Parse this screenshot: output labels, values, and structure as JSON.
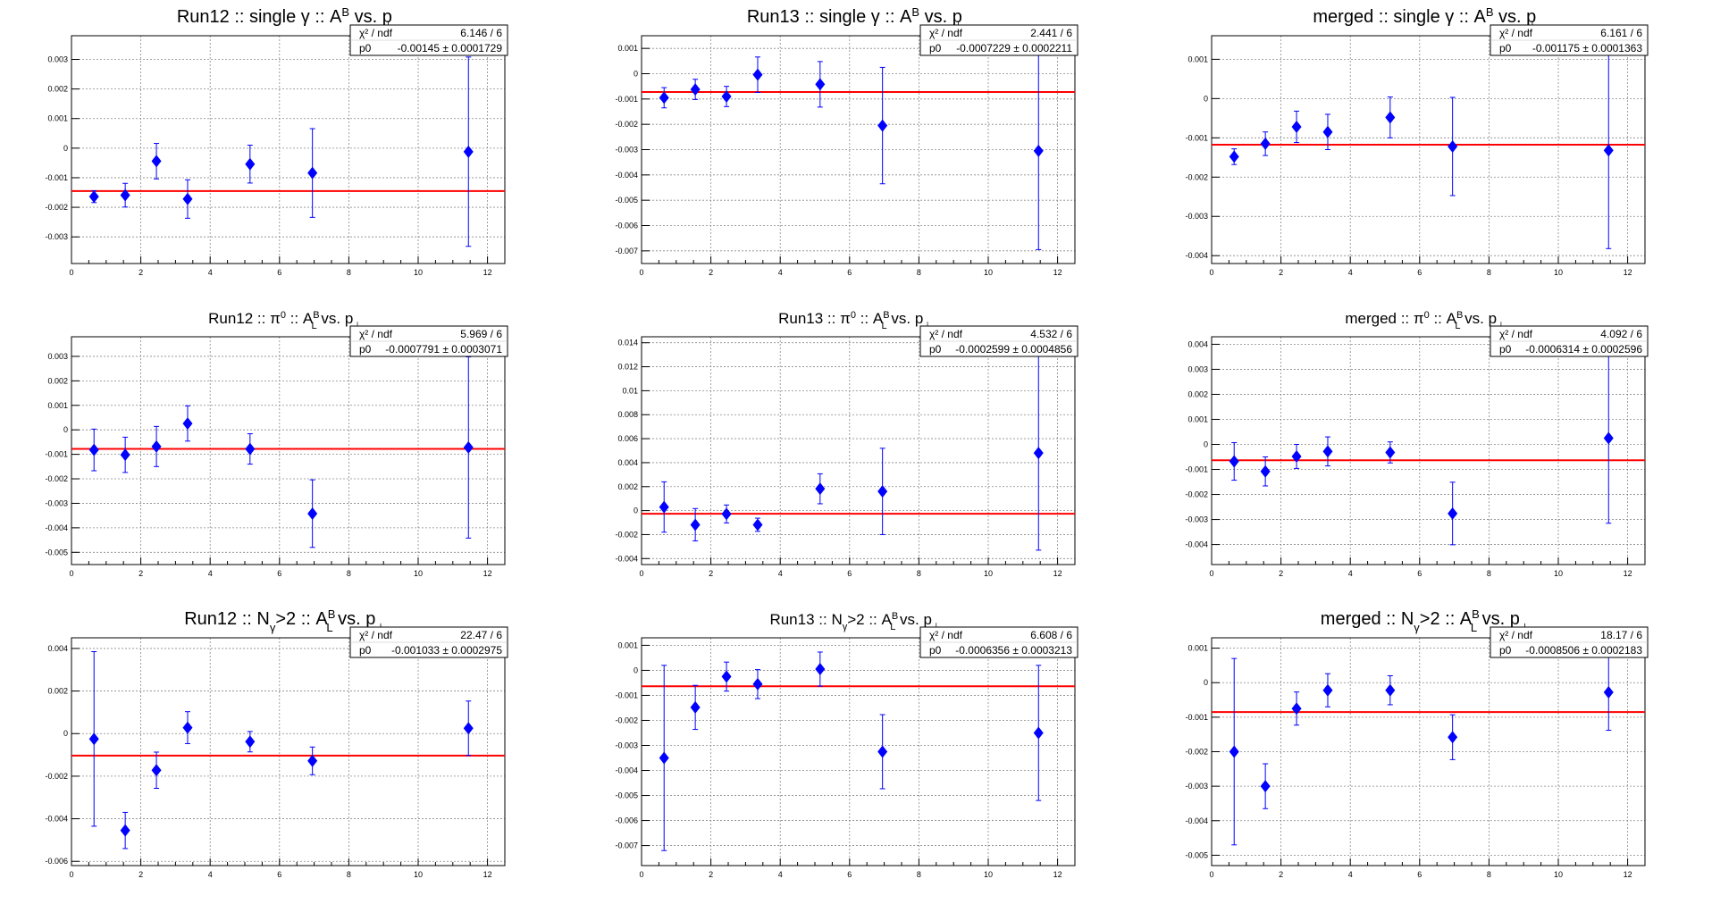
{
  "chart_data": [
    {
      "type": "scatter",
      "title": "Run12 :: single γ :: A",
      "title_sup": "B",
      "title_sub": "",
      "title_tail": " vs. p",
      "title_tail_sub": "⊥",
      "title_size": 20,
      "stats": {
        "chi2_label": "χ² / ndf",
        "chi2_value": "6.146 / 6",
        "p0_label": "p0",
        "p0_value": "-0.00145 ± 0.0001729"
      },
      "xlim": [
        0,
        12.5
      ],
      "ylim": [
        -0.0039,
        0.0038
      ],
      "xticks": [
        0,
        2,
        4,
        6,
        8,
        10,
        12
      ],
      "yticks": [
        -0.003,
        -0.002,
        -0.001,
        0,
        0.001,
        0.002,
        0.003
      ],
      "yticklabels": [
        "-0.003",
        "-0.002",
        "-0.001",
        "0",
        "0.001",
        "0.002",
        "0.003"
      ],
      "fit": -0.00145,
      "points": [
        {
          "x": 0.65,
          "y": -0.00164,
          "err": 0.0002
        },
        {
          "x": 1.55,
          "y": -0.00159,
          "err": 0.0004
        },
        {
          "x": 2.45,
          "y": -0.00044,
          "err": 0.0006
        },
        {
          "x": 3.35,
          "y": -0.00172,
          "err": 0.00065
        },
        {
          "x": 5.15,
          "y": -0.00054,
          "err": 0.00064
        },
        {
          "x": 6.95,
          "y": -0.00084,
          "err": 0.0015
        },
        {
          "x": 11.45,
          "y": -0.00012,
          "err": 0.0032
        }
      ]
    },
    {
      "type": "scatter",
      "title": "Run13 :: single γ :: A",
      "title_sup": "B",
      "title_sub": "",
      "title_tail": " vs. p",
      "title_tail_sub": "⊥",
      "title_size": 20,
      "stats": {
        "chi2_label": "χ² / ndf",
        "chi2_value": "2.441 / 6",
        "p0_label": "p0",
        "p0_value": "-0.0007229 ± 0.0002211"
      },
      "xlim": [
        0,
        12.5
      ],
      "ylim": [
        -0.0075,
        0.0015
      ],
      "xticks": [
        0,
        2,
        4,
        6,
        8,
        10,
        12
      ],
      "yticks": [
        -0.007,
        -0.006,
        -0.005,
        -0.004,
        -0.003,
        -0.002,
        -0.001,
        0,
        0.001
      ],
      "yticklabels": [
        "-0.007",
        "-0.006",
        "-0.005",
        "-0.004",
        "-0.003",
        "-0.002",
        "-0.001",
        "0",
        "0.001"
      ],
      "fit": -0.0007229,
      "points": [
        {
          "x": 0.65,
          "y": -0.00095,
          "err": 0.0004
        },
        {
          "x": 1.55,
          "y": -0.00062,
          "err": 0.0004
        },
        {
          "x": 2.45,
          "y": -0.0009,
          "err": 0.0004
        },
        {
          "x": 3.35,
          "y": -4e-05,
          "err": 0.0007
        },
        {
          "x": 5.15,
          "y": -0.00042,
          "err": 0.0009
        },
        {
          "x": 6.95,
          "y": -0.00205,
          "err": 0.0023
        },
        {
          "x": 11.45,
          "y": -0.00305,
          "err": 0.0039
        }
      ]
    },
    {
      "type": "scatter",
      "title": "merged :: single γ :: A",
      "title_sup": "B",
      "title_sub": "",
      "title_tail": " vs. p",
      "title_tail_sub": "⊥",
      "title_size": 20,
      "stats": {
        "chi2_label": "χ² / ndf",
        "chi2_value": "6.161 / 6",
        "p0_label": "p0",
        "p0_value": "-0.001175 ± 0.0001363"
      },
      "xlim": [
        0,
        12.5
      ],
      "ylim": [
        -0.0042,
        0.0016
      ],
      "xticks": [
        0,
        2,
        4,
        6,
        8,
        10,
        12
      ],
      "yticks": [
        -0.004,
        -0.003,
        -0.002,
        -0.001,
        0,
        0.001
      ],
      "yticklabels": [
        "-0.004",
        "-0.003",
        "-0.002",
        "-0.001",
        "0",
        "0.001"
      ],
      "fit": -0.001175,
      "points": [
        {
          "x": 0.65,
          "y": -0.00148,
          "err": 0.0002
        },
        {
          "x": 1.55,
          "y": -0.00115,
          "err": 0.0003
        },
        {
          "x": 2.45,
          "y": -0.00072,
          "err": 0.0004
        },
        {
          "x": 3.35,
          "y": -0.00085,
          "err": 0.00045
        },
        {
          "x": 5.15,
          "y": -0.00048,
          "err": 0.00052
        },
        {
          "x": 6.95,
          "y": -0.00122,
          "err": 0.00125
        },
        {
          "x": 11.45,
          "y": -0.00132,
          "err": 0.0025
        }
      ]
    },
    {
      "type": "scatter",
      "title": "Run12 :: π",
      "title_sup": "0",
      "title_sub": "",
      "title_tail": " :: A",
      "title_tail_sup": "B",
      "title_tail_sub": "L",
      "title_tail2": " vs. p",
      "title_tail2_sub": "⊥",
      "title_size": 17,
      "stats": {
        "chi2_label": "χ² / ndf",
        "chi2_value": "5.969 / 6",
        "p0_label": "p0",
        "p0_value": "-0.0007791 ± 0.0003071"
      },
      "xlim": [
        0,
        12.5
      ],
      "ylim": [
        -0.0055,
        0.0038
      ],
      "xticks": [
        0,
        2,
        4,
        6,
        8,
        10,
        12
      ],
      "yticks": [
        -0.005,
        -0.004,
        -0.003,
        -0.002,
        -0.001,
        0,
        0.001,
        0.002,
        0.003
      ],
      "yticklabels": [
        "-0.005",
        "-0.004",
        "-0.003",
        "-0.002",
        "-0.001",
        "0",
        "0.001",
        "0.002",
        "0.003"
      ],
      "fit": -0.0007791,
      "points": [
        {
          "x": 0.65,
          "y": -0.00082,
          "err": 0.00085
        },
        {
          "x": 1.55,
          "y": -0.00102,
          "err": 0.00072
        },
        {
          "x": 2.45,
          "y": -0.00068,
          "err": 0.00082
        },
        {
          "x": 3.35,
          "y": 0.00026,
          "err": 0.00072
        },
        {
          "x": 5.15,
          "y": -0.00078,
          "err": 0.00062
        },
        {
          "x": 6.95,
          "y": -0.00342,
          "err": 0.00138
        },
        {
          "x": 11.45,
          "y": -0.00072,
          "err": 0.0037
        }
      ]
    },
    {
      "type": "scatter",
      "title": "Run13 :: π",
      "title_sup": "0",
      "title_sub": "",
      "title_tail": " :: A",
      "title_tail_sup": "B",
      "title_tail_sub": "L",
      "title_tail2": " vs. p",
      "title_tail2_sub": "⊥",
      "title_size": 17,
      "stats": {
        "chi2_label": "χ² / ndf",
        "chi2_value": "4.532 / 6",
        "p0_label": "p0",
        "p0_value": "-0.0002599 ± 0.0004856"
      },
      "xlim": [
        0,
        12.5
      ],
      "ylim": [
        -0.0045,
        0.0145
      ],
      "xticks": [
        0,
        2,
        4,
        6,
        8,
        10,
        12
      ],
      "yticks": [
        -0.004,
        -0.002,
        0,
        0.002,
        0.004,
        0.006,
        0.008,
        0.01,
        0.012,
        0.014
      ],
      "yticklabels": [
        "-0.004",
        "-0.002",
        "0",
        "0.002",
        "0.004",
        "0.006",
        "0.008",
        "0.01",
        "0.012",
        "0.014"
      ],
      "fit": -0.0002599,
      "points": [
        {
          "x": 0.65,
          "y": 0.0003,
          "err": 0.0021
        },
        {
          "x": 1.55,
          "y": -0.00118,
          "err": 0.00135
        },
        {
          "x": 2.45,
          "y": -0.00028,
          "err": 0.00075
        },
        {
          "x": 3.35,
          "y": -0.00118,
          "err": 0.00055
        },
        {
          "x": 5.15,
          "y": 0.00182,
          "err": 0.00125
        },
        {
          "x": 6.95,
          "y": 0.0016,
          "err": 0.0036
        },
        {
          "x": 11.45,
          "y": 0.0048,
          "err": 0.0081
        }
      ]
    },
    {
      "type": "scatter",
      "title": "merged :: π",
      "title_sup": "0",
      "title_sub": "",
      "title_tail": " :: A",
      "title_tail_sup": "B",
      "title_tail_sub": "L",
      "title_tail2": " vs. p",
      "title_tail2_sub": "⊥",
      "title_size": 17,
      "stats": {
        "chi2_label": "χ² / ndf",
        "chi2_value": "4.092 / 6",
        "p0_label": "p0",
        "p0_value": "-0.0006314 ± 0.0002596"
      },
      "xlim": [
        0,
        12.5
      ],
      "ylim": [
        -0.0048,
        0.0043
      ],
      "xticks": [
        0,
        2,
        4,
        6,
        8,
        10,
        12
      ],
      "yticks": [
        -0.004,
        -0.003,
        -0.002,
        -0.001,
        0,
        0.001,
        0.002,
        0.003,
        0.004
      ],
      "yticklabels": [
        "-0.004",
        "-0.003",
        "-0.002",
        "-0.001",
        "0",
        "0.001",
        "0.002",
        "0.003",
        "0.004"
      ],
      "fit": -0.0006314,
      "points": [
        {
          "x": 0.65,
          "y": -0.00068,
          "err": 0.00075
        },
        {
          "x": 1.55,
          "y": -0.00108,
          "err": 0.00058
        },
        {
          "x": 2.45,
          "y": -0.00048,
          "err": 0.00048
        },
        {
          "x": 3.35,
          "y": -0.00028,
          "err": 0.00058
        },
        {
          "x": 5.15,
          "y": -0.00032,
          "err": 0.00042
        },
        {
          "x": 6.95,
          "y": -0.00276,
          "err": 0.00125
        },
        {
          "x": 11.45,
          "y": 0.00025,
          "err": 0.0034
        }
      ]
    },
    {
      "type": "scatter",
      "title": "Run12 :: N",
      "title_sup": "",
      "title_sub": "γ",
      "title_tail": ">2 :: A",
      "title_tail_sup": "B",
      "title_tail_sub": "L",
      "title_tail2": " vs. p",
      "title_tail2_sub": "⊥",
      "title_size": 20,
      "stats": {
        "chi2_label": "χ² / ndf",
        "chi2_value": "22.47 / 6",
        "p0_label": "p0",
        "p0_value": "-0.001033 ± 0.0002975"
      },
      "xlim": [
        0,
        12.5
      ],
      "ylim": [
        -0.0062,
        0.0045
      ],
      "xticks": [
        0,
        2,
        4,
        6,
        8,
        10,
        12
      ],
      "yticks": [
        -0.006,
        -0.004,
        -0.002,
        0,
        0.002,
        0.004
      ],
      "yticklabels": [
        "-0.006",
        "-0.004",
        "-0.002",
        "0",
        "0.002",
        "0.004"
      ],
      "fit": -0.001033,
      "points": [
        {
          "x": 0.65,
          "y": -0.00025,
          "err": 0.0041
        },
        {
          "x": 1.55,
          "y": -0.00455,
          "err": 0.00085
        },
        {
          "x": 2.45,
          "y": -0.00172,
          "err": 0.00085
        },
        {
          "x": 3.35,
          "y": 0.00028,
          "err": 0.00075
        },
        {
          "x": 5.15,
          "y": -0.00038,
          "err": 0.00048
        },
        {
          "x": 6.95,
          "y": -0.00128,
          "err": 0.00065
        },
        {
          "x": 11.45,
          "y": 0.00025,
          "err": 0.00128
        }
      ]
    },
    {
      "type": "scatter",
      "title": "Run13 :: N",
      "title_sup": "",
      "title_sub": "γ",
      "title_tail": ">2 :: A",
      "title_tail_sup": "B",
      "title_tail_sub": "L",
      "title_tail2": " vs. p",
      "title_tail2_sub": "⊥",
      "title_size": 17,
      "stats": {
        "chi2_label": "χ² / ndf",
        "chi2_value": "6.608 / 6",
        "p0_label": "p0",
        "p0_value": "-0.0006356 ± 0.0003213"
      },
      "xlim": [
        0,
        12.5
      ],
      "ylim": [
        -0.0078,
        0.0013
      ],
      "xticks": [
        0,
        2,
        4,
        6,
        8,
        10,
        12
      ],
      "yticks": [
        -0.007,
        -0.006,
        -0.005,
        -0.004,
        -0.003,
        -0.002,
        -0.001,
        0,
        0.001
      ],
      "yticklabels": [
        "-0.007",
        "-0.006",
        "-0.005",
        "-0.004",
        "-0.003",
        "-0.002",
        "-0.001",
        "0",
        "0.001"
      ],
      "fit": -0.0006356,
      "points": [
        {
          "x": 0.65,
          "y": -0.0035,
          "err": 0.0037
        },
        {
          "x": 1.55,
          "y": -0.00148,
          "err": 0.00088
        },
        {
          "x": 2.45,
          "y": -0.00025,
          "err": 0.00058
        },
        {
          "x": 3.35,
          "y": -0.00055,
          "err": 0.00058
        },
        {
          "x": 5.15,
          "y": 5e-05,
          "err": 0.00068
        },
        {
          "x": 6.95,
          "y": -0.00325,
          "err": 0.00148
        },
        {
          "x": 11.45,
          "y": -0.0025,
          "err": 0.0027
        }
      ]
    },
    {
      "type": "scatter",
      "title": "merged :: N",
      "title_sup": "",
      "title_sub": "γ",
      "title_tail": ">2 :: A",
      "title_tail_sup": "B",
      "title_tail_sub": "L",
      "title_tail2": " vs. p",
      "title_tail2_sub": "⊥",
      "title_size": 20,
      "stats": {
        "chi2_label": "χ² / ndf",
        "chi2_value": "18.17 / 6",
        "p0_label": "p0",
        "p0_value": "-0.0008506 ± 0.0002183"
      },
      "xlim": [
        0,
        12.5
      ],
      "ylim": [
        -0.0053,
        0.0013
      ],
      "xticks": [
        0,
        2,
        4,
        6,
        8,
        10,
        12
      ],
      "yticks": [
        -0.005,
        -0.004,
        -0.003,
        -0.002,
        -0.001,
        0,
        0.001
      ],
      "yticklabels": [
        "-0.005",
        "-0.004",
        "-0.003",
        "-0.002",
        "-0.001",
        "0",
        "0.001"
      ],
      "fit": -0.0008506,
      "points": [
        {
          "x": 0.65,
          "y": -0.002,
          "err": 0.0027
        },
        {
          "x": 1.55,
          "y": -0.003,
          "err": 0.00065
        },
        {
          "x": 2.45,
          "y": -0.00075,
          "err": 0.00048
        },
        {
          "x": 3.35,
          "y": -0.00022,
          "err": 0.00048
        },
        {
          "x": 5.15,
          "y": -0.00022,
          "err": 0.00042
        },
        {
          "x": 6.95,
          "y": -0.00158,
          "err": 0.00065
        },
        {
          "x": 11.45,
          "y": -0.00028,
          "err": 0.0011
        }
      ]
    }
  ],
  "colors": {
    "marker": "#0000ff",
    "fit": "#ff0000",
    "grid": "#888888"
  }
}
